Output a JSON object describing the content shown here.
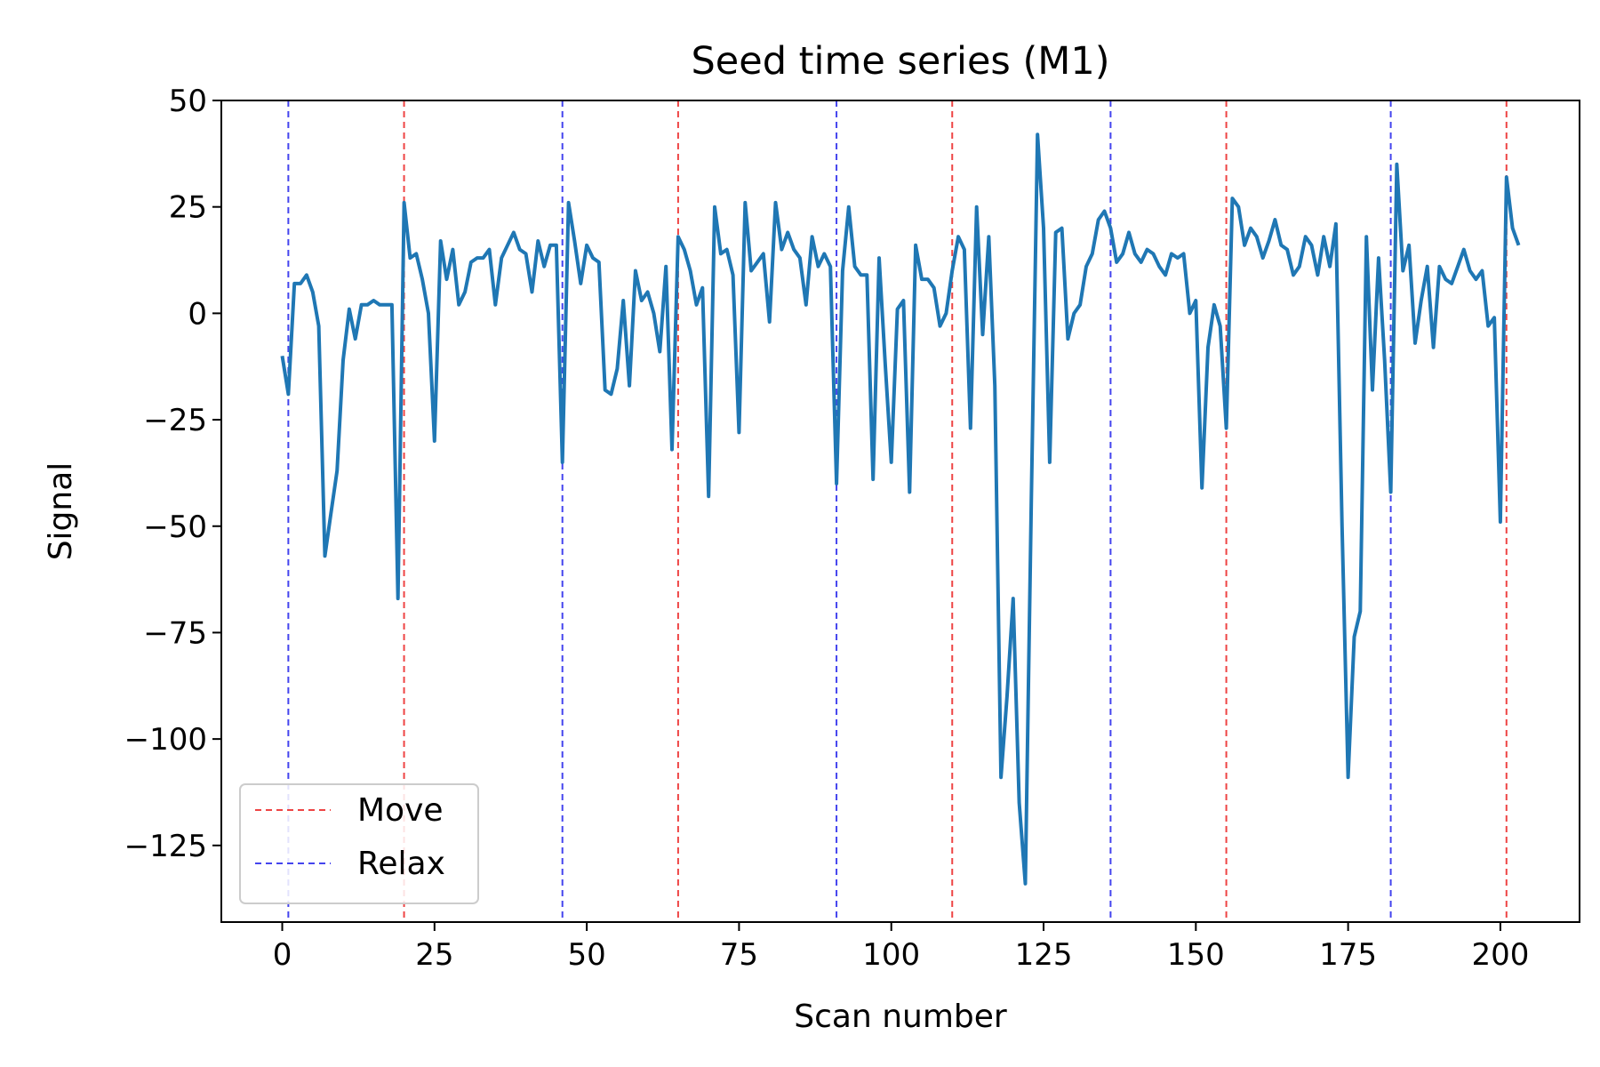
{
  "chart_data": {
    "type": "line",
    "title": "Seed time series (M1)",
    "xlabel": "Scan number",
    "ylabel": "Signal",
    "xlim": [
      -10,
      213
    ],
    "ylim": [
      -143,
      50
    ],
    "xticks": [
      0,
      25,
      50,
      75,
      100,
      125,
      150,
      175,
      200
    ],
    "yticks": [
      50,
      25,
      0,
      -25,
      -50,
      -75,
      -100,
      -125
    ],
    "ytick_labels": [
      "50",
      "25",
      "0",
      "−25",
      "−50",
      "−75",
      "−100",
      "−125"
    ],
    "grid": false,
    "legend_position": "lower-left",
    "series": [
      {
        "color": "#1f77b4",
        "x": [
          0,
          1,
          2,
          3,
          4,
          5,
          6,
          7,
          8,
          9,
          10,
          11,
          12,
          13,
          14,
          15,
          16,
          17,
          18,
          19,
          20,
          21,
          22,
          23,
          24,
          25,
          26,
          27,
          28,
          29,
          30,
          31,
          32,
          33,
          34,
          35,
          36,
          37,
          38,
          39,
          40,
          41,
          42,
          43,
          44,
          45,
          46,
          47,
          48,
          49,
          50,
          51,
          52,
          53,
          54,
          55,
          56,
          57,
          58,
          59,
          60,
          61,
          62,
          63,
          64,
          65,
          66,
          67,
          68,
          69,
          70,
          71,
          72,
          73,
          74,
          75,
          76,
          77,
          78,
          79,
          80,
          81,
          82,
          83,
          84,
          85,
          86,
          87,
          88,
          89,
          90,
          91,
          92,
          93,
          94,
          95,
          96,
          97,
          98,
          99,
          100,
          101,
          102,
          103,
          104,
          105,
          106,
          107,
          108,
          109,
          110,
          111,
          112,
          113,
          114,
          115,
          116,
          117,
          118,
          119,
          120,
          121,
          122,
          123,
          124,
          125,
          126,
          127,
          128,
          129,
          130,
          131,
          132,
          133,
          134,
          135,
          136,
          137,
          138,
          139,
          140,
          141,
          142,
          143,
          144,
          145,
          146,
          147,
          148,
          149,
          150,
          151,
          152,
          153,
          154,
          155,
          156,
          157,
          158,
          159,
          160,
          161,
          162,
          163,
          164,
          165,
          166,
          167,
          168,
          169,
          170,
          171,
          172,
          173,
          174,
          175,
          176,
          177,
          178,
          179,
          180,
          181,
          182,
          183,
          184,
          185,
          186,
          187,
          188,
          189,
          190,
          191,
          192,
          193,
          194,
          195,
          196,
          197,
          198,
          199,
          200,
          201,
          202,
          203
        ],
        "y": [
          -10,
          -19,
          7,
          7,
          9,
          5,
          -3,
          -57,
          -47,
          -37,
          -11,
          1,
          -6,
          2,
          2,
          3,
          2,
          2,
          2,
          -67,
          26,
          13,
          14,
          8,
          0,
          -30,
          17,
          8,
          15,
          2,
          5,
          12,
          13,
          13,
          15,
          2,
          13,
          16,
          19,
          15,
          14,
          5,
          17,
          11,
          16,
          16,
          -35,
          26,
          17,
          7,
          16,
          13,
          12,
          -18,
          -19,
          -13,
          3,
          -17,
          10,
          3,
          5,
          0,
          -9,
          11,
          -32,
          18,
          15,
          10,
          2,
          6,
          -43,
          25,
          14,
          15,
          9,
          -28,
          26,
          10,
          12,
          14,
          -2,
          26,
          15,
          19,
          15,
          13,
          2,
          18,
          11,
          14,
          11,
          -40,
          10,
          25,
          11,
          9,
          9,
          -39,
          13,
          -12,
          -35,
          1,
          3,
          -42,
          16,
          8,
          8,
          6,
          -3,
          0,
          10,
          18,
          15,
          -27,
          25,
          -5,
          18,
          -17,
          -109,
          -90,
          -67,
          -115,
          -134,
          -43,
          42,
          20,
          -35,
          19,
          20,
          -6,
          0,
          2,
          11,
          14,
          22,
          24,
          20,
          12,
          14,
          19,
          14,
          12,
          15,
          14,
          11,
          9,
          14,
          13,
          14,
          0,
          3,
          -41,
          -8,
          2,
          -3,
          -27,
          27,
          25,
          16,
          20,
          18,
          13,
          17,
          22,
          16,
          15,
          9,
          11,
          18,
          16,
          9,
          18,
          11,
          21,
          -50,
          -109,
          -76,
          -70,
          18,
          -18,
          13,
          -11,
          -42,
          35,
          10,
          16,
          -7,
          3,
          11,
          -8,
          11,
          8,
          7,
          11,
          15,
          10,
          8,
          10,
          -3,
          -1,
          -49,
          32,
          20,
          16
        ]
      }
    ],
    "vlines": [
      {
        "x": 1,
        "type": "relax"
      },
      {
        "x": 20,
        "type": "move"
      },
      {
        "x": 46,
        "type": "relax"
      },
      {
        "x": 65,
        "type": "move"
      },
      {
        "x": 91,
        "type": "relax"
      },
      {
        "x": 110,
        "type": "move"
      },
      {
        "x": 136,
        "type": "relax"
      },
      {
        "x": 155,
        "type": "move"
      },
      {
        "x": 182,
        "type": "relax"
      },
      {
        "x": 201,
        "type": "move"
      }
    ],
    "legend": [
      {
        "key": "move",
        "label": "Move",
        "color": "#ee4444"
      },
      {
        "key": "relax",
        "label": "Relax",
        "color": "#4444ee"
      }
    ]
  }
}
